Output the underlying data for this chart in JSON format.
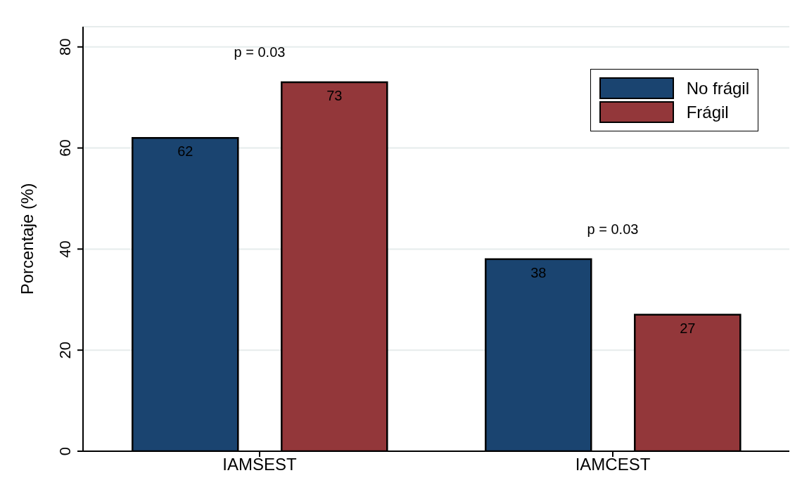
{
  "chart_data": {
    "type": "bar",
    "ylabel": "Porcentaje (%)",
    "categories": [
      "IAMSEST",
      "IAMCEST"
    ],
    "series": [
      {
        "name": "No frágil",
        "color": "#1a4470",
        "values": [
          62,
          38
        ]
      },
      {
        "name": "Frágil",
        "color": "#93373a",
        "values": [
          73,
          27
        ]
      }
    ],
    "ylim": [
      0,
      84
    ],
    "yticks": [
      0,
      20,
      40,
      60,
      80
    ],
    "grid": "y",
    "legend": "top right",
    "data_labels": true,
    "annotations": [
      "p = 0.03",
      "p = 0.03"
    ]
  }
}
